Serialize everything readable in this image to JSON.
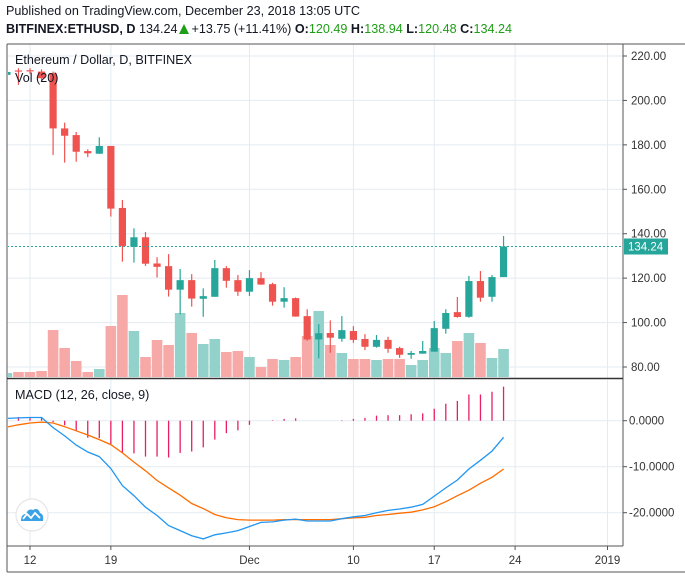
{
  "header": {
    "published": "Published on TradingView.com, December 23, 2018 13:05 UTC",
    "symbol": "BITFINEX:ETHUSD, D",
    "last": "134.24",
    "change": "+13.75 (+11.41%)",
    "o_label": "O:",
    "o": "120.49",
    "h_label": "H:",
    "h": "138.94",
    "l_label": "L:",
    "l": "120.48",
    "c_label": "C:",
    "c": "134.24",
    "direction_icon": "triangle-up-icon"
  },
  "legend": {
    "main": "Ethereum / Dollar, D, BITFINEX",
    "volume": "Vol (20)",
    "macd": "MACD (12, 26, close, 9)"
  },
  "colors": {
    "up": "#26a69a",
    "down": "#ef5350",
    "vol_up": "#93d2cb",
    "vol_down": "#f6a9a7",
    "macd": "#2196f3",
    "signal": "#ff6d00",
    "histogram": "#e91e63",
    "grid": "#e3ebf1",
    "change_green": "#1e9e16"
  },
  "chart_data": [
    {
      "type": "candlestick",
      "title": "Ethereum / Dollar, D, BITFINEX",
      "ylim": [
        75,
        225
      ],
      "y_ticks": [
        "220.00",
        "200.00",
        "180.00",
        "160.00",
        "140.00",
        "120.00",
        "100.00",
        "80.00"
      ],
      "x_ticks": [
        {
          "label": "12",
          "date": "2018-11-12"
        },
        {
          "label": "19",
          "date": "2018-11-19"
        },
        {
          "label": "Dec",
          "date": "2018-12-01"
        },
        {
          "label": "10",
          "date": "2018-12-10"
        },
        {
          "label": "17",
          "date": "2018-12-17"
        },
        {
          "label": "24",
          "date": "2018-12-24"
        },
        {
          "label": "2019",
          "date": "2019-01-01"
        }
      ],
      "last_price_label": "134.24",
      "grid": true,
      "columns": [
        "date",
        "open",
        "high",
        "low",
        "close",
        "volume_relative"
      ],
      "candles": [
        [
          "2018-11-10",
          211.5,
          213,
          211,
          212.8,
          4
        ],
        [
          "2018-11-11",
          213.5,
          214.5,
          207,
          213.2,
          5
        ],
        [
          "2018-11-12",
          213.6,
          214.5,
          212,
          213.3,
          5
        ],
        [
          "2018-11-13",
          213,
          214,
          209,
          210,
          6
        ],
        [
          "2018-11-14",
          212.3,
          213,
          175.4,
          187.4,
          47
        ],
        [
          "2018-11-15",
          187.4,
          190,
          172,
          184.1,
          29
        ],
        [
          "2018-11-16",
          184.4,
          185.8,
          172.4,
          176.9,
          16
        ],
        [
          "2018-11-17",
          177.2,
          178,
          174.5,
          176.2,
          5
        ],
        [
          "2018-11-18",
          176,
          183.4,
          176,
          179.5,
          8
        ],
        [
          "2018-11-19",
          179.5,
          179.5,
          147.7,
          151.3,
          51
        ],
        [
          "2018-11-20",
          151.6,
          155.2,
          127.4,
          134.5,
          82
        ],
        [
          "2018-11-21",
          134.1,
          142.4,
          127,
          138.4,
          46
        ],
        [
          "2018-11-22",
          138.4,
          140.8,
          125.5,
          126.5,
          20
        ],
        [
          "2018-11-23",
          126.6,
          129.4,
          120.3,
          125.1,
          37
        ],
        [
          "2018-11-24",
          125.4,
          130.8,
          111.7,
          114.8,
          32
        ],
        [
          "2018-11-25",
          114.8,
          124.1,
          103.7,
          119.1,
          64
        ],
        [
          "2018-11-26",
          119.1,
          121.8,
          107.2,
          110.8,
          44
        ],
        [
          "2018-11-27",
          110.7,
          115.4,
          102.6,
          111.9,
          33
        ],
        [
          "2018-11-28",
          111.6,
          128.2,
          111.6,
          124.5,
          38
        ],
        [
          "2018-11-29",
          124.5,
          125.4,
          115.7,
          118.8,
          25
        ],
        [
          "2018-11-30",
          119.1,
          121.4,
          112,
          113.9,
          26
        ],
        [
          "2018-12-01",
          113.9,
          123.6,
          112,
          120,
          20
        ],
        [
          "2018-12-02",
          120,
          122.7,
          117,
          117.1,
          10
        ],
        [
          "2018-12-03",
          117.3,
          117.9,
          107.6,
          109.4,
          18
        ],
        [
          "2018-12-04",
          109.4,
          115.9,
          106.7,
          111,
          17
        ],
        [
          "2018-12-05",
          111,
          111.3,
          102.6,
          102.7,
          20
        ],
        [
          "2018-12-06",
          102.9,
          106,
          91.8,
          92.4,
          41
        ],
        [
          "2018-12-07",
          92.4,
          99.3,
          83.9,
          95.2,
          66
        ],
        [
          "2018-12-08",
          95.3,
          101,
          86.4,
          93.2,
          32
        ],
        [
          "2018-12-09",
          92.7,
          102.9,
          91.4,
          96.6,
          24
        ],
        [
          "2018-12-10",
          96.2,
          98.4,
          90.9,
          92.2,
          18
        ],
        [
          "2018-12-11",
          92.6,
          94.8,
          87.6,
          89.1,
          18
        ],
        [
          "2018-12-12",
          89.1,
          94.4,
          88.7,
          92.2,
          17
        ],
        [
          "2018-12-13",
          92.2,
          93.6,
          86.4,
          88.2,
          18
        ],
        [
          "2018-12-14",
          88.5,
          89.1,
          84.1,
          85.5,
          18
        ],
        [
          "2018-12-15",
          85.5,
          87.2,
          83.7,
          86.3,
          12
        ],
        [
          "2018-12-16",
          86,
          91.7,
          86,
          87.2,
          17
        ],
        [
          "2018-12-17",
          86.9,
          100.7,
          86.9,
          97.5,
          29
        ],
        [
          "2018-12-18",
          97.2,
          106,
          95,
          104.3,
          24
        ],
        [
          "2018-12-19",
          104.7,
          111.5,
          102.2,
          102.5,
          36
        ],
        [
          "2018-12-20",
          102.6,
          121,
          102.2,
          118.7,
          44
        ],
        [
          "2018-12-21",
          118.7,
          123.2,
          109.4,
          111.2,
          34
        ],
        [
          "2018-12-22",
          111.6,
          121.4,
          109.4,
          120.49,
          19
        ],
        [
          "2018-12-23",
          120.49,
          138.94,
          120.48,
          134.24,
          28
        ]
      ]
    },
    {
      "type": "line",
      "title": "MACD (12, 26, close, 9)",
      "ylim": [
        -27.5,
        9
      ],
      "y_ticks": [
        {
          "label": "0.0000",
          "value": 0
        },
        {
          "label": "-10.0000",
          "value": -10
        },
        {
          "label": "-20.0000",
          "value": -20
        }
      ],
      "grid": true,
      "start_date": "2018-11-10",
      "macd": [
        0.5,
        0.6,
        0.7,
        0.7,
        -1.5,
        -3.3,
        -5.3,
        -6.8,
        -7.8,
        -10.4,
        -14.1,
        -16.3,
        -18.8,
        -20.6,
        -22.8,
        -23.9,
        -25.0,
        -25.7,
        -24.8,
        -24.4,
        -23.9,
        -23.0,
        -22.1,
        -22.0,
        -21.6,
        -21.4,
        -21.8,
        -21.8,
        -21.8,
        -21.3,
        -20.9,
        -20.6,
        -20.0,
        -19.5,
        -19.2,
        -18.8,
        -18.2,
        -16.4,
        -14.6,
        -12.9,
        -10.5,
        -8.6,
        -6.6,
        -3.6
      ],
      "signal": [
        -1.4,
        -0.9,
        -0.5,
        -0.3,
        -0.5,
        -1.3,
        -2.2,
        -3.1,
        -4.1,
        -5.2,
        -7.0,
        -9.0,
        -10.9,
        -13.0,
        -14.6,
        -16.2,
        -18.0,
        -19.1,
        -20.4,
        -21.1,
        -21.5,
        -21.6,
        -21.6,
        -21.6,
        -21.5,
        -21.5,
        -21.5,
        -21.5,
        -21.5,
        -21.3,
        -21.1,
        -21.0,
        -20.6,
        -20.4,
        -20.1,
        -19.9,
        -19.4,
        -18.7,
        -17.6,
        -16.3,
        -15.1,
        -13.6,
        -12.3,
        -10.5
      ],
      "histogram": [
        0.9,
        0.8,
        0.8,
        0.6,
        -0.3,
        -1.0,
        -2.2,
        -3.7,
        -3.8,
        -5.2,
        -6.9,
        -7.1,
        -7.8,
        -7.8,
        -8.0,
        -7.0,
        -6.7,
        -5.8,
        -4.1,
        -2.7,
        -2.1,
        -0.9,
        0,
        0.1,
        0.4,
        0.5,
        0,
        0,
        0,
        0.1,
        0.4,
        0.6,
        1.1,
        1.2,
        1.2,
        1.4,
        1.6,
        2.6,
        3.7,
        4.3,
        5.7,
        5.7,
        6.3,
        7.4
      ]
    }
  ],
  "logo": {
    "icon": "tradingview-logo-icon"
  }
}
